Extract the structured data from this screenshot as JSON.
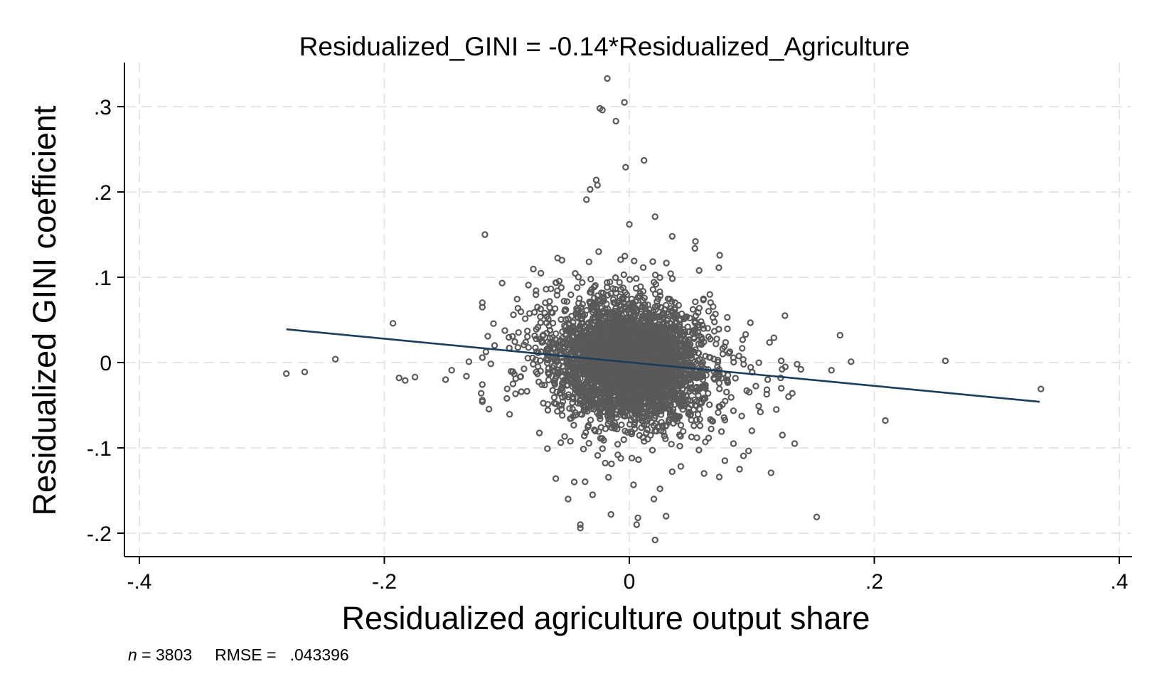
{
  "chart_data": {
    "type": "scatter",
    "title": "Residualized_GINI = -0.14*Residualized_Agriculture",
    "xlabel": "Residualized agriculture output share",
    "ylabel": "Residualized GINI coefficient",
    "xlim": [
      -0.4,
      0.4
    ],
    "ylim": [
      -0.2,
      0.3
    ],
    "x_ticks": [
      -0.4,
      -0.2,
      0,
      0.2,
      0.4
    ],
    "x_tick_labels": [
      "-.4",
      "-.2",
      "0",
      ".2",
      ".4"
    ],
    "y_ticks": [
      -0.2,
      -0.1,
      0,
      0.1,
      0.2,
      0.3
    ],
    "y_tick_labels": [
      "-.2",
      "-.1",
      "0",
      ".1",
      ".2",
      ".3"
    ],
    "grid": true,
    "n": 3803,
    "marker_color": "#595959",
    "line_color": "#1a3d5c",
    "fit_line": {
      "slope": -0.14,
      "x": [
        -0.28,
        0.335
      ],
      "y": [
        0.039,
        -0.046
      ]
    },
    "outliers": [
      [
        -0.28,
        -0.013
      ],
      [
        -0.265,
        -0.011
      ],
      [
        -0.24,
        0.004
      ],
      [
        -0.193,
        0.046
      ],
      [
        -0.188,
        -0.018
      ],
      [
        -0.183,
        -0.021
      ],
      [
        -0.175,
        -0.017
      ],
      [
        -0.15,
        -0.02
      ],
      [
        -0.145,
        -0.009
      ],
      [
        -0.133,
        -0.016
      ],
      [
        -0.131,
        0.001
      ],
      [
        -0.121,
        -0.036
      ],
      [
        -0.12,
        -0.044
      ],
      [
        -0.11,
        0.02
      ],
      [
        -0.098,
        0.017
      ],
      [
        -0.1,
        -0.042
      ],
      [
        -0.095,
        -0.025
      ],
      [
        -0.06,
        -0.136
      ],
      [
        -0.04,
        -0.19
      ],
      [
        -0.04,
        -0.194
      ],
      [
        -0.015,
        -0.178
      ],
      [
        0.007,
        -0.182
      ],
      [
        0.006,
        -0.19
      ],
      [
        0.021,
        -0.208
      ],
      [
        0.03,
        -0.18
      ],
      [
        -0.018,
        0.333
      ],
      [
        -0.022,
        0.296
      ],
      [
        -0.024,
        0.298
      ],
      [
        -0.004,
        0.305
      ],
      [
        -0.011,
        0.283
      ],
      [
        0.012,
        0.237
      ],
      [
        -0.003,
        0.229
      ],
      [
        -0.027,
        0.214
      ],
      [
        -0.026,
        0.208
      ],
      [
        -0.032,
        0.203
      ],
      [
        -0.035,
        0.191
      ],
      [
        0.021,
        0.171
      ],
      [
        0.0,
        0.162
      ],
      [
        0.054,
        0.142
      ],
      [
        0.035,
        0.148
      ],
      [
        0.127,
        0.055
      ],
      [
        0.172,
        0.032
      ],
      [
        0.165,
        -0.009
      ],
      [
        0.181,
        0.001
      ],
      [
        0.258,
        0.002
      ],
      [
        0.336,
        -0.031
      ],
      [
        0.209,
        -0.068
      ],
      [
        0.153,
        -0.181
      ],
      [
        0.135,
        -0.095
      ],
      [
        0.125,
        -0.085
      ],
      [
        0.13,
        -0.04
      ],
      [
        0.12,
        -0.055
      ],
      [
        0.113,
        -0.02
      ],
      [
        0.107,
        -0.058
      ],
      [
        0.1,
        -0.08
      ],
      [
        0.095,
        0.033
      ],
      [
        0.09,
        -0.125
      ],
      [
        0.085,
        -0.095
      ],
      [
        0.078,
        -0.115
      ],
      [
        0.061,
        -0.13
      ],
      [
        0.035,
        -0.128
      ],
      [
        0.02,
        -0.16
      ],
      [
        0.025,
        -0.148
      ],
      [
        -0.05,
        -0.16
      ],
      [
        -0.045,
        -0.14
      ],
      [
        -0.03,
        -0.155
      ],
      [
        -0.055,
        0.12
      ],
      [
        -0.025,
        0.13
      ],
      [
        -0.075,
        0.065
      ],
      [
        -0.068,
        0.086
      ],
      [
        0.057,
        0.108
      ],
      [
        0.08,
        0.053
      ],
      [
        0.118,
        0.029
      ],
      [
        0.124,
        0.002
      ],
      [
        0.133,
        -0.036
      ]
    ],
    "note": {
      "n_label": "n",
      "n_text": " = 3803",
      "rmse_text": "RMSE =   .043396"
    }
  }
}
